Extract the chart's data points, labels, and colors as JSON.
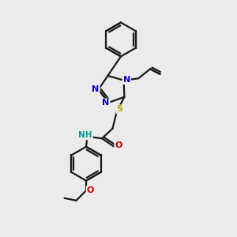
{
  "bg_color": "#ebebeb",
  "bond_color": "#1a1a1a",
  "bond_width": 1.6,
  "atom_colors": {
    "N": "#0000cc",
    "S": "#aaaa00",
    "O": "#cc0000",
    "NH": "#009999",
    "C": "#1a1a1a"
  },
  "figsize": [
    3.0,
    3.0
  ],
  "dpi": 100
}
